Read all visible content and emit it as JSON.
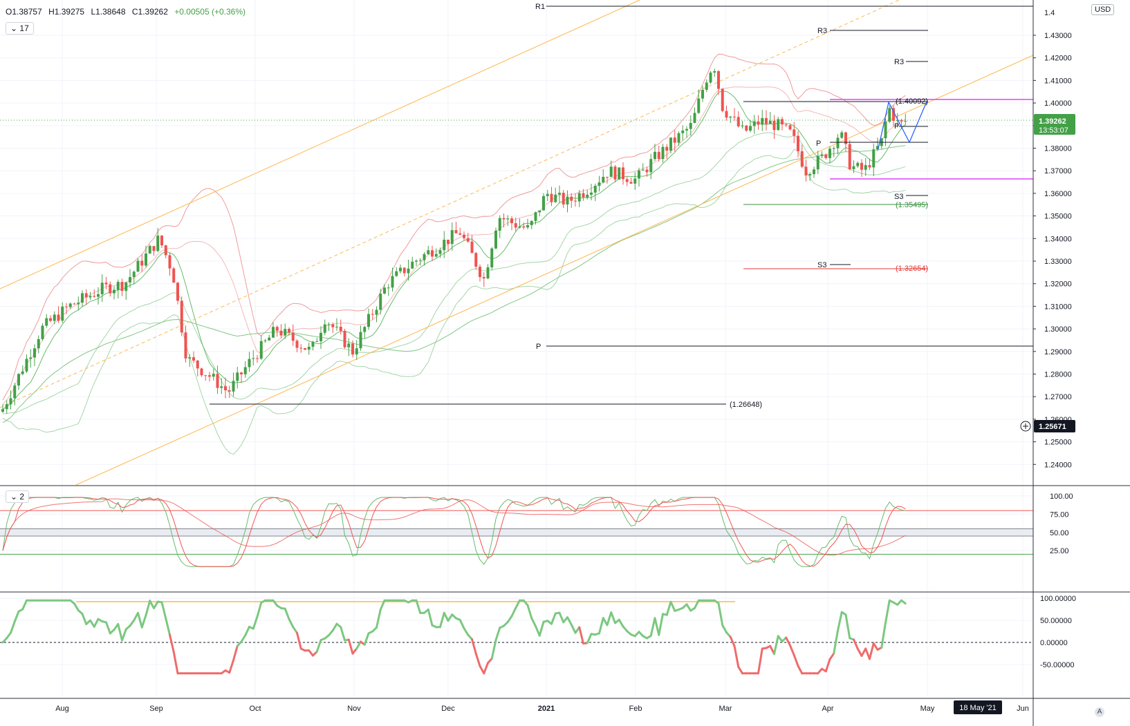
{
  "header": {
    "open": "O1.38757",
    "high": "H1.39275",
    "low": "L1.38648",
    "close": "C1.39262",
    "change": "+0.00505 (+0.36%)"
  },
  "controls": {
    "main_period": "17",
    "osc_period": "2",
    "currency": "USD",
    "auto_scale": "A",
    "collapse_icon": "chevron-down-icon"
  },
  "price_axis": {
    "ticks": [
      "1.43000",
      "1.42000",
      "1.41000",
      "1.40000",
      "1.39000",
      "1.38000",
      "1.37000",
      "1.36000",
      "1.35000",
      "1.34000",
      "1.33000",
      "1.32000",
      "1.31000",
      "1.30000",
      "1.29000",
      "1.28000",
      "1.27000",
      "1.26000",
      "1.25000",
      "1.24000"
    ],
    "top_partial": "1.4"
  },
  "current_price": {
    "value": "1.39262",
    "countdown": "13:53:07",
    "color": "#43a047"
  },
  "crosshair_price": "1.25671",
  "stoch_axis": [
    "100.00",
    "75.00",
    "50.00",
    "25.00"
  ],
  "mom_axis": [
    "100.00000",
    "50.00000",
    "0.00000",
    "-50.00000"
  ],
  "time_axis": {
    "labels": [
      "Aug",
      "Sep",
      "Oct",
      "Nov",
      "Dec",
      "2021",
      "Feb",
      "Mar",
      "Apr",
      "May",
      "Jun"
    ],
    "crosshair_date": "18 May '21"
  },
  "annotations": {
    "pivot_labels": [
      "R1",
      "R3",
      "R3",
      "P",
      "P",
      "S3",
      "S3",
      "P"
    ],
    "price_tags": [
      "(1.40092)",
      "(1.35495)",
      "(1.32654)",
      "(1.26648)"
    ]
  },
  "colors": {
    "up": "#43a047",
    "down": "#ef5350",
    "magenta": "#e040fb",
    "channel": "#ffb74d",
    "blue": "#2962ff"
  },
  "chart_data": {
    "type": "candlestick",
    "symbol_quote": "USD",
    "price_range": [
      1.232,
      1.443
    ],
    "months": [
      "Aug",
      "Sep",
      "Oct",
      "Nov",
      "Dec",
      "2021",
      "Feb",
      "Mar",
      "Apr",
      "May",
      "Jun"
    ],
    "key_levels": {
      "resistance_high": 1.40092,
      "level_1": 1.35495,
      "level_2": 1.32654,
      "support_low": 1.26648,
      "magenta_upper": 1.4015,
      "magenta_lower": 1.3665
    },
    "last": {
      "open": 1.38757,
      "high": 1.39275,
      "low": 1.38648,
      "close": 1.39262
    },
    "stochastic_levels": [
      80,
      50,
      20
    ],
    "momentum_zero": 0
  }
}
